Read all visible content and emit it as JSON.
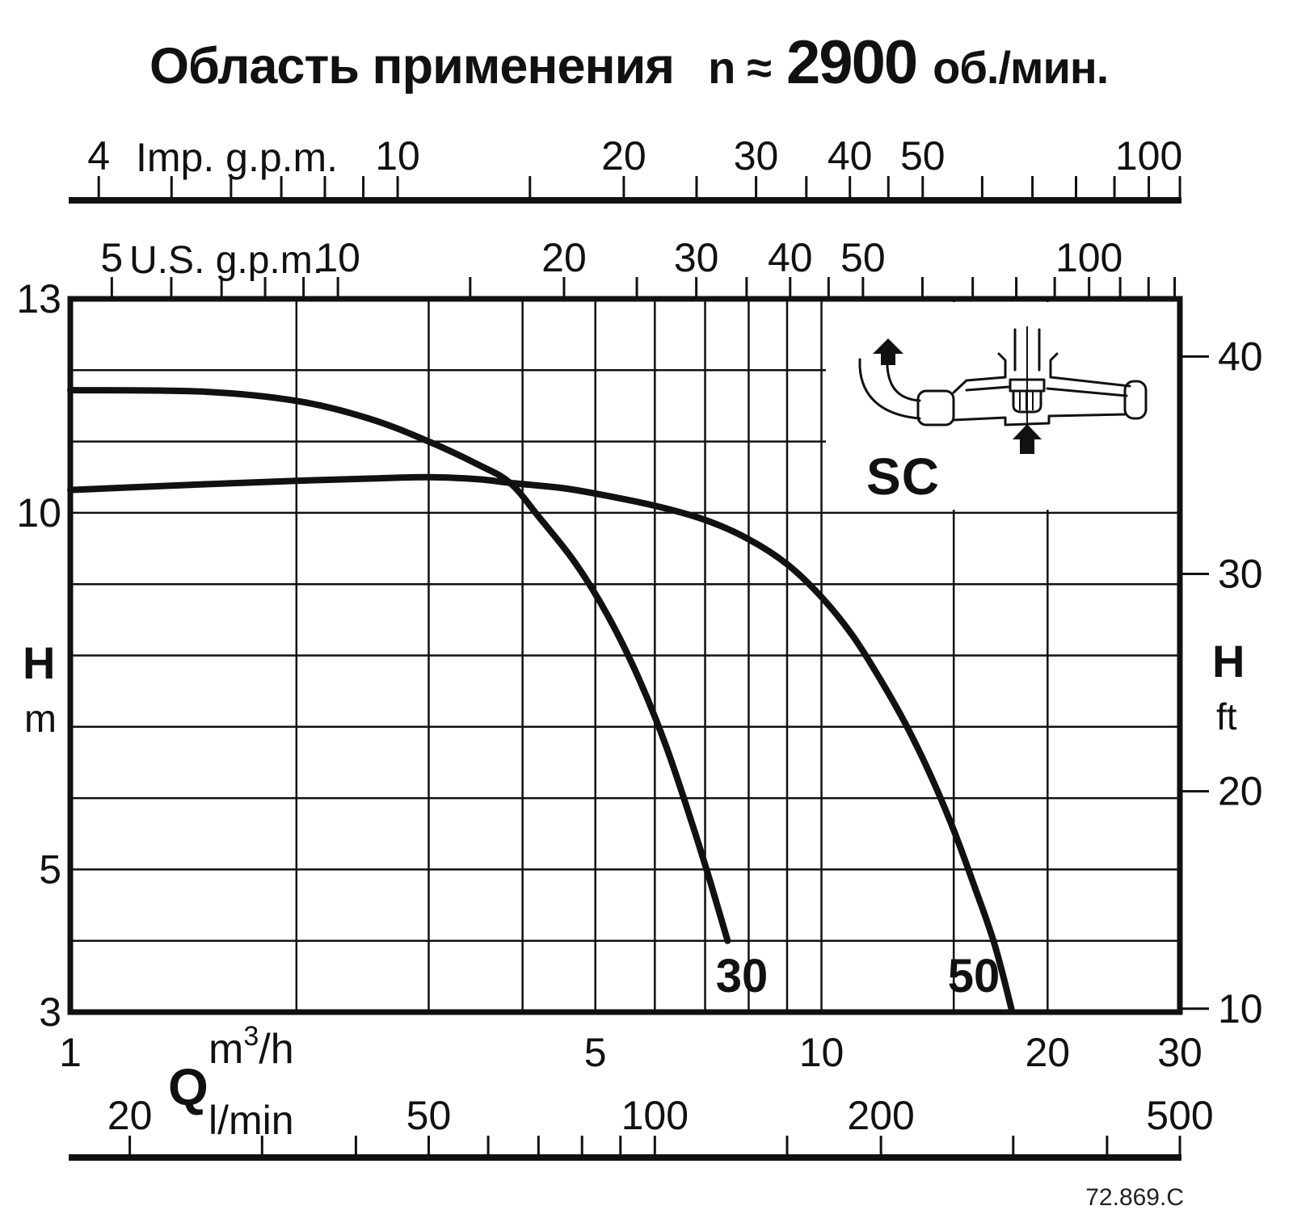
{
  "header": {
    "main": "Область применения",
    "n": "n",
    "approx": "≈",
    "rpm": "2900",
    "unit": "об./мин."
  },
  "footer": {
    "code": "72.869.C"
  },
  "chart_data": {
    "type": "line",
    "title": "Область применения n ≈ 2900 об./мин.",
    "x_axis": {
      "label": "Q",
      "scale": "log",
      "range_m3h": [
        1,
        30
      ],
      "unit_rows": [
        "Imp. g.p.m.",
        "U.S. g.p.m.",
        "m³/h",
        "l/min"
      ]
    },
    "y_axis": {
      "label": "H",
      "scale": "linear",
      "range_m": [
        3,
        13
      ],
      "units": [
        "m",
        "ft"
      ]
    },
    "grid": {
      "on": true,
      "x_m3h": [
        2,
        3,
        4,
        5,
        6,
        7,
        8,
        9,
        10,
        15,
        20
      ],
      "y_m": [
        4,
        5,
        6,
        7,
        8,
        9,
        10,
        11,
        12
      ]
    },
    "axes_ticks": {
      "imp_gpm": {
        "label": "Imp. g.p.m.",
        "to_m3h": 3.6661,
        "ticks": [
          4,
          5,
          6,
          7,
          8,
          9,
          10,
          15,
          20,
          25,
          30,
          35,
          40,
          45,
          50,
          60,
          70,
          80,
          90,
          100,
          110
        ],
        "labeled": [
          4,
          10,
          20,
          30,
          40,
          50,
          100
        ]
      },
      "us_gpm": {
        "label": "U.S. g.p.m.",
        "to_m3h": 4.4029,
        "ticks": [
          5,
          6,
          7,
          8,
          9,
          10,
          15,
          20,
          25,
          30,
          35,
          40,
          45,
          50,
          60,
          70,
          80,
          90,
          100,
          110,
          120,
          130
        ],
        "labeled": [
          5,
          10,
          20,
          30,
          40,
          50,
          100
        ]
      },
      "m3h": {
        "label_q": "Q",
        "unit_base": "m",
        "unit_sup": "3",
        "unit_rest": "/h",
        "labeled": [
          1,
          5,
          10,
          20,
          30
        ]
      },
      "l_min": {
        "label": "l/min",
        "to_m3h": 16.6667,
        "ticks": [
          20,
          30,
          40,
          50,
          60,
          70,
          80,
          90,
          100,
          150,
          200,
          300,
          400,
          500
        ],
        "labeled": [
          20,
          50,
          100,
          200,
          500
        ]
      },
      "h_m": {
        "label_h": "H",
        "label_unit": "m",
        "labeled": [
          13,
          10,
          5,
          3
        ]
      },
      "h_ft": {
        "label_h": "H",
        "label_unit": "ft",
        "ft_per_m": 3.2808,
        "labeled": [
          40,
          30,
          20,
          10
        ]
      }
    },
    "series": [
      {
        "name": "30",
        "points_q_h": [
          [
            1,
            11.72
          ],
          [
            1.5,
            11.7
          ],
          [
            2,
            11.57
          ],
          [
            2.5,
            11.32
          ],
          [
            3,
            11.0
          ],
          [
            3.5,
            10.67
          ],
          [
            3.85,
            10.42
          ],
          [
            4.2,
            9.95
          ],
          [
            4.7,
            9.3
          ],
          [
            5.2,
            8.55
          ],
          [
            5.7,
            7.7
          ],
          [
            6.2,
            6.75
          ],
          [
            6.7,
            5.7
          ],
          [
            7.1,
            4.85
          ],
          [
            7.5,
            4.0
          ]
        ]
      },
      {
        "name": "50",
        "points_q_h": [
          [
            1,
            10.32
          ],
          [
            1.5,
            10.4
          ],
          [
            2,
            10.45
          ],
          [
            2.5,
            10.48
          ],
          [
            3,
            10.5
          ],
          [
            3.5,
            10.47
          ],
          [
            3.85,
            10.42
          ],
          [
            4.5,
            10.35
          ],
          [
            5,
            10.27
          ],
          [
            6,
            10.1
          ],
          [
            7,
            9.9
          ],
          [
            8,
            9.63
          ],
          [
            9,
            9.28
          ],
          [
            10,
            8.82
          ],
          [
            11,
            8.28
          ],
          [
            12,
            7.65
          ],
          [
            13,
            7.0
          ],
          [
            14,
            6.3
          ],
          [
            15,
            5.55
          ],
          [
            16,
            4.75
          ],
          [
            17,
            3.95
          ],
          [
            17.9,
            3.05
          ]
        ]
      }
    ],
    "inset": {
      "label": "SC"
    },
    "code": "72.869.C",
    "ink_color": "#111111",
    "grid_color": "#1c1c1c",
    "background": "#ffffff"
  }
}
